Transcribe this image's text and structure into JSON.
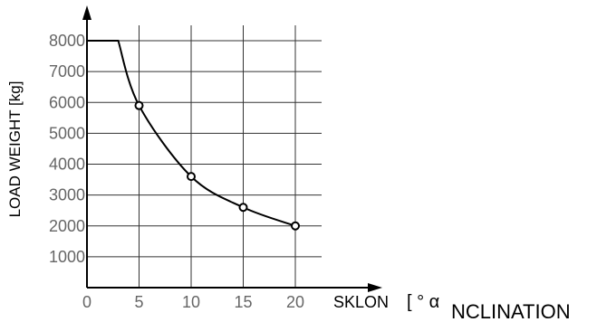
{
  "chart_data": {
    "type": "line",
    "ylabel": "LOAD WEIGHT [kg]",
    "xlabel_parts": [
      "SKLON",
      "[ ° α",
      "NCLINATION"
    ],
    "x_ticks": [
      "0",
      "5",
      "10",
      "15",
      "20"
    ],
    "y_ticks": [
      "1000",
      "2000",
      "3000",
      "4000",
      "5000",
      "6000",
      "7000",
      "8000"
    ],
    "xlim": [
      0,
      20
    ],
    "ylim": [
      0,
      8000
    ],
    "grid": true,
    "series": [
      {
        "x": [
          0,
          3,
          5,
          10,
          15,
          20
        ],
        "values": [
          8000,
          8000,
          5900,
          3600,
          2600,
          2000
        ],
        "markers": [
          5,
          10,
          15,
          20
        ]
      }
    ]
  }
}
